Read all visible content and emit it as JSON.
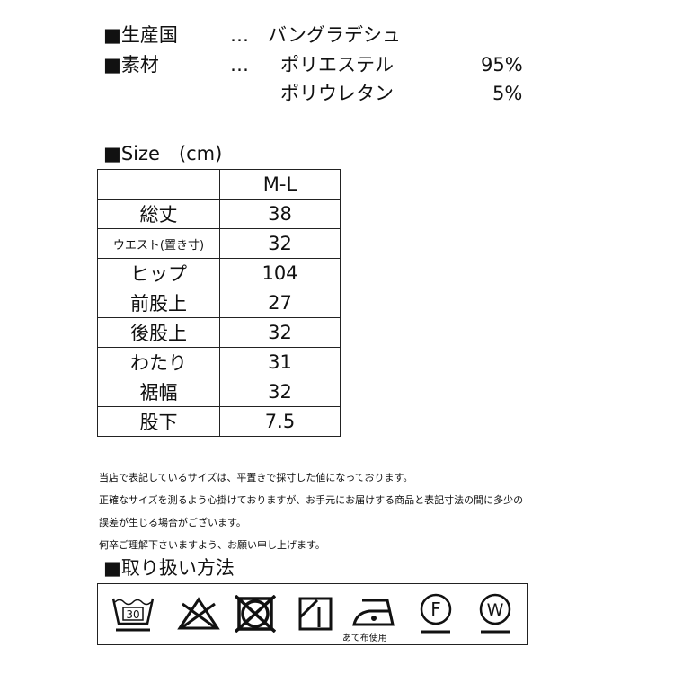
{
  "origin": {
    "label": "■生産国",
    "dots": "…",
    "value": "バングラデシュ"
  },
  "material": {
    "label": "■素材",
    "dots": "…",
    "items": [
      {
        "name": "ポリエステル",
        "pct": "95%"
      },
      {
        "name": "ポリウレタン",
        "pct": "5%"
      }
    ]
  },
  "size": {
    "title": "■Size　(cm)",
    "header": "M-L",
    "rows": [
      {
        "label": "総丈",
        "value": "38"
      },
      {
        "label": "ウエスト(置き寸)",
        "value": "32"
      },
      {
        "label": "ヒップ",
        "value": "104"
      },
      {
        "label": "前股上",
        "value": "27"
      },
      {
        "label": "後股上",
        "value": "32"
      },
      {
        "label": "わたり",
        "value": "31"
      },
      {
        "label": "裾幅",
        "value": "32"
      },
      {
        "label": "股下",
        "value": "7.5"
      }
    ]
  },
  "notes": [
    "当店で表記しているサイズは、平置きで採寸した値になっております。",
    "正確なサイズを測るよう心掛けておりますが、お手元にお届けする商品と表記寸法の間に多少の",
    "誤差が生じる場合がございます。",
    "何卒ご理解下さいますよう、お願い申し上げます。"
  ],
  "care": {
    "title": "■取り扱い方法",
    "wash_temp": "30",
    "iron_note": "あて布使用",
    "dry_clean": "F",
    "wet_clean": "W",
    "icons": [
      "wash-30-icon",
      "no-bleach-icon",
      "no-tumble-dry-icon",
      "drip-dry-shade-icon",
      "iron-low-icon",
      "dry-clean-f-icon",
      "wet-clean-w-icon"
    ]
  }
}
